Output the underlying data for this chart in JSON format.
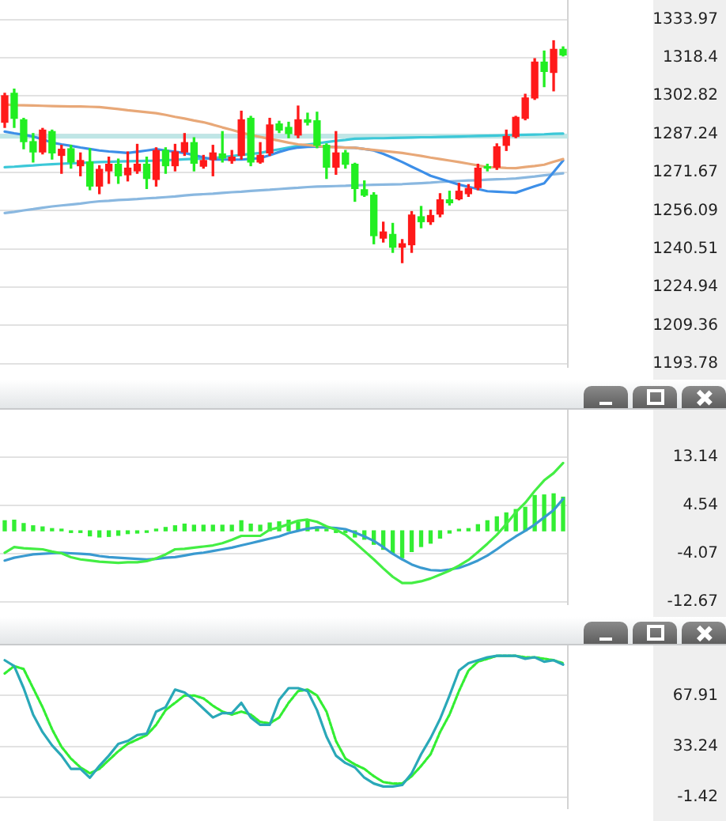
{
  "chart_data": [
    {
      "type": "candlestick",
      "categories": [
        null,
        null,
        null,
        null,
        null,
        null,
        null,
        null,
        null,
        null,
        null,
        null,
        null,
        null,
        null,
        null,
        null,
        null,
        null,
        null,
        null,
        null,
        null,
        null,
        null,
        null,
        null,
        null,
        null,
        null,
        null,
        null,
        null,
        null,
        null,
        null,
        null,
        null,
        null,
        null,
        null,
        null,
        null,
        null,
        null,
        null,
        null,
        null,
        null,
        null,
        null,
        null,
        null,
        null,
        null,
        null,
        null,
        null,
        null,
        null
      ],
      "ohlc": [
        [
          1292.1,
          1303.9,
          1290.0,
          1302.9
        ],
        [
          1303.9,
          1305.6,
          1290.0,
          1293.7
        ],
        [
          1293.1,
          1293.7,
          1281.3,
          1284.2
        ],
        [
          1284.2,
          1287.5,
          1275.9,
          1280.0
        ],
        [
          1280.0,
          1289.6,
          1279.2,
          1288.9
        ],
        [
          1288.3,
          1288.9,
          1277.1,
          1279.6
        ],
        [
          1278.6,
          1282.7,
          1271.3,
          1281.1
        ],
        [
          1281.3,
          1282.7,
          1273.4,
          1275.9
        ],
        [
          1274.4,
          1279.6,
          1270.3,
          1276.5
        ],
        [
          1275.9,
          1281.3,
          1264.6,
          1266.1
        ],
        [
          1266.1,
          1274.4,
          1263.0,
          1272.9
        ],
        [
          1272.3,
          1277.9,
          1267.2,
          1275.0
        ],
        [
          1275.0,
          1277.1,
          1267.2,
          1270.3
        ],
        [
          1270.7,
          1280.0,
          1268.2,
          1273.4
        ],
        [
          1272.3,
          1283.1,
          1271.3,
          1275.0
        ],
        [
          1275.0,
          1277.9,
          1265.1,
          1269.2
        ],
        [
          1268.8,
          1281.7,
          1266.1,
          1280.6
        ],
        [
          1280.6,
          1281.7,
          1271.3,
          1274.4
        ],
        [
          1274.4,
          1283.1,
          1272.3,
          1280.0
        ],
        [
          1280.0,
          1287.5,
          1278.6,
          1283.8
        ],
        [
          1283.8,
          1285.8,
          1272.3,
          1275.4
        ],
        [
          1274.2,
          1278.6,
          1273.4,
          1276.5
        ],
        [
          1276.9,
          1282.7,
          1270.3,
          1279.6
        ],
        [
          1279.2,
          1288.3,
          1275.9,
          1277.5
        ],
        [
          1276.5,
          1280.6,
          1275.4,
          1277.9
        ],
        [
          1278.6,
          1296.6,
          1277.1,
          1293.1
        ],
        [
          1293.7,
          1294.5,
          1274.4,
          1275.9
        ],
        [
          1275.9,
          1283.8,
          1275.4,
          1278.6
        ],
        [
          1279.6,
          1293.7,
          1278.6,
          1291.0
        ],
        [
          1291.4,
          1292.5,
          1287.9,
          1288.9
        ],
        [
          1290.0,
          1292.1,
          1285.8,
          1287.5
        ],
        [
          1286.9,
          1298.7,
          1285.8,
          1293.1
        ],
        [
          1293.1,
          1295.8,
          1291.0,
          1292.1
        ],
        [
          1292.7,
          1296.2,
          1281.7,
          1282.7
        ],
        [
          1282.7,
          1283.3,
          1269.2,
          1273.8
        ],
        [
          1273.8,
          1288.3,
          1270.9,
          1279.6
        ],
        [
          1279.6,
          1280.6,
          1273.4,
          1275.0
        ],
        [
          1275.0,
          1275.4,
          1259.9,
          1265.1
        ],
        [
          1264.6,
          1268.2,
          1261.9,
          1262.4
        ],
        [
          1262.4,
          1263.4,
          1242.6,
          1245.9
        ],
        [
          1244.9,
          1251.4,
          1243.3,
          1247.4
        ],
        [
          1246.4,
          1250.9,
          1239.1,
          1241.2
        ],
        [
          1241.2,
          1244.3,
          1234.9,
          1242.6
        ],
        [
          1242.2,
          1255.7,
          1239.1,
          1254.3
        ],
        [
          1253.6,
          1257.8,
          1249.1,
          1251.6
        ],
        [
          1251.6,
          1256.3,
          1250.5,
          1254.1
        ],
        [
          1254.7,
          1263.0,
          1253.6,
          1260.5
        ],
        [
          1260.5,
          1264.0,
          1258.4,
          1259.3
        ],
        [
          1260.9,
          1267.2,
          1260.5,
          1264.0
        ],
        [
          1263.0,
          1266.7,
          1261.9,
          1265.1
        ],
        [
          1265.5,
          1275.0,
          1264.6,
          1273.4
        ],
        [
          1273.8,
          1275.0,
          1272.3,
          1273.4
        ],
        [
          1273.8,
          1283.3,
          1272.9,
          1282.1
        ],
        [
          1282.7,
          1288.9,
          1280.6,
          1286.3
        ],
        [
          1286.3,
          1294.5,
          1285.8,
          1294.1
        ],
        [
          1293.7,
          1303.5,
          1293.1,
          1302.0
        ],
        [
          1302.0,
          1318.0,
          1301.4,
          1316.6
        ],
        [
          1316.6,
          1321.1,
          1306.6,
          1312.8
        ],
        [
          1312.4,
          1325.3,
          1304.9,
          1321.8
        ],
        [
          1321.8,
          1322.8,
          1319.1,
          1319.5
        ]
      ],
      "colors": [
        "#ff1a1a",
        "#22ee22",
        "#22ee22",
        "#22ee22",
        "#ff1a1a",
        "#22ee22",
        "#ff1a1a",
        "#22ee22",
        "#ff1a1a",
        "#22ee22",
        "#ff1a1a",
        "#ff1a1a",
        "#22ee22",
        "#ff1a1a",
        "#ff1a1a",
        "#22ee22",
        "#ff1a1a",
        "#22ee22",
        "#ff1a1a",
        "#ff1a1a",
        "#22ee22",
        "#ff1a1a",
        "#ff1a1a",
        "#22ee22",
        "#ff1a1a",
        "#ff1a1a",
        "#22ee22",
        "#ff1a1a",
        "#ff1a1a",
        "#22ee22",
        "#22ee22",
        "#ff1a1a",
        "#22ee22",
        "#22ee22",
        "#22ee22",
        "#ff1a1a",
        "#22ee22",
        "#22ee22",
        "#22ee22",
        "#22ee22",
        "#ff1a1a",
        "#22ee22",
        "#ff1a1a",
        "#ff1a1a",
        "#22ee22",
        "#ff1a1a",
        "#ff1a1a",
        "#22ee22",
        "#ff1a1a",
        "#ff1a1a",
        "#ff1a1a",
        "#22ee22",
        "#ff1a1a",
        "#ff1a1a",
        "#ff1a1a",
        "#ff1a1a",
        "#ff1a1a",
        "#22ee22",
        "#ff1a1a",
        "#22ee22"
      ],
      "series": [
        {
          "type": "line",
          "color": "#e8a878",
          "values": [
            1299.3,
            1299.1,
            1299.0,
            1298.9,
            1298.8,
            1298.7,
            1298.6,
            1298.5,
            1298.5,
            1298.4,
            1298.3,
            1297.9,
            1297.5,
            1297.0,
            1296.6,
            1296.2,
            1295.8,
            1295.1,
            1294.3,
            1293.6,
            1292.8,
            1292.1,
            1291.1,
            1290.0,
            1289.0,
            1287.9,
            1286.9,
            1286.1,
            1285.3,
            1284.6,
            1283.8,
            1283.1,
            1282.8,
            1282.4,
            1282.1,
            1281.9,
            1281.8,
            1281.7,
            1281.2,
            1280.8,
            1280.4,
            1280.0,
            1279.6,
            1279.0,
            1278.4,
            1277.7,
            1277.1,
            1276.5,
            1275.9,
            1275.2,
            1274.5,
            1273.8,
            1273.7,
            1273.5,
            1273.4,
            1273.9,
            1274.3,
            1274.8,
            1276.0,
            1277.1
          ]
        },
        {
          "type": "line",
          "color": "#3d8fe8",
          "values": [
            1288.3,
            1287.6,
            1287.0,
            1286.3,
            1285.1,
            1283.8,
            1283.1,
            1282.5,
            1281.8,
            1281.2,
            1280.6,
            1280.2,
            1279.9,
            1279.6,
            1280.1,
            1280.6,
            1281.1,
            1280.6,
            1280.1,
            1279.6,
            1278.7,
            1277.8,
            1276.9,
            1276.9,
            1276.9,
            1276.9,
            1277.2,
            1277.5,
            1278.7,
            1280.0,
            1281.1,
            1281.8,
            1282.1,
            1282.2,
            1282.2,
            1282.0,
            1281.8,
            1281.7,
            1281.2,
            1280.6,
            1279.2,
            1277.6,
            1275.9,
            1274.0,
            1272.2,
            1270.3,
            1269.1,
            1267.9,
            1266.7,
            1265.8,
            1264.9,
            1264.0,
            1263.8,
            1263.6,
            1263.4,
            1264.7,
            1266.0,
            1267.2,
            1271.8,
            1276.5
          ]
        },
        {
          "type": "line",
          "color": "#8ab8e0",
          "values": [
            1255.1,
            1255.6,
            1256.2,
            1256.7,
            1257.3,
            1257.8,
            1258.2,
            1258.6,
            1259.0,
            1259.5,
            1259.9,
            1260.1,
            1260.4,
            1260.6,
            1260.8,
            1261.1,
            1261.3,
            1261.6,
            1261.9,
            1262.3,
            1262.6,
            1262.8,
            1263.0,
            1263.3,
            1263.6,
            1263.8,
            1264.1,
            1264.4,
            1264.6,
            1264.9,
            1265.2,
            1265.4,
            1265.7,
            1265.9,
            1266.0,
            1266.1,
            1266.2,
            1266.4,
            1266.5,
            1266.6,
            1266.7,
            1266.8,
            1266.9,
            1267.1,
            1267.3,
            1267.5,
            1267.8,
            1268.0,
            1268.2,
            1268.4,
            1268.5,
            1268.7,
            1268.9,
            1269.0,
            1269.2,
            1269.6,
            1270.0,
            1270.5,
            1270.9,
            1271.3
          ]
        },
        {
          "type": "line",
          "color": "#3cc8d8",
          "values": [
            1273.8,
            1274.0,
            1274.3,
            1274.5,
            1274.8,
            1275.0,
            1275.2,
            1275.4,
            1275.5,
            1275.7,
            1275.9,
            1276.0,
            1276.1,
            1276.2,
            1276.3,
            1276.4,
            1276.5,
            1276.7,
            1276.8,
            1277.0,
            1277.2,
            1277.3,
            1277.5,
            1277.9,
            1278.3,
            1278.8,
            1279.2,
            1279.6,
            1280.4,
            1281.1,
            1281.8,
            1282.5,
            1283.0,
            1283.5,
            1284.0,
            1284.5,
            1284.9,
            1285.4,
            1285.5,
            1285.6,
            1285.6,
            1285.7,
            1285.8,
            1285.9,
            1286.0,
            1286.0,
            1286.1,
            1286.2,
            1286.3,
            1286.4,
            1286.5,
            1286.6,
            1286.7,
            1286.8,
            1286.9,
            1287.0,
            1287.1,
            1287.2,
            1287.4,
            1287.5
          ]
        }
      ],
      "ref_lines": [
        {
          "axis": "y",
          "value": 1286.4,
          "color": "#bfe6e6"
        }
      ],
      "ylim": [
        1192.4,
        1341.9
      ],
      "yticks": [
        1193.78,
        1209.36,
        1224.94,
        1240.51,
        1256.09,
        1271.67,
        1287.24,
        1302.82,
        1318.4,
        1333.97
      ],
      "grid": "y",
      "tick_labels": "y",
      "marker": "none"
    },
    {
      "type": "bar",
      "categories": [
        null,
        null,
        null,
        null,
        null,
        null,
        null,
        null,
        null,
        null,
        null,
        null,
        null,
        null,
        null,
        null,
        null,
        null,
        null,
        null,
        null,
        null,
        null,
        null,
        null,
        null,
        null,
        null,
        null,
        null,
        null,
        null,
        null,
        null,
        null,
        null,
        null,
        null,
        null,
        null,
        null,
        null,
        null,
        null,
        null,
        null,
        null,
        null,
        null,
        null,
        null,
        null,
        null,
        null,
        null,
        null,
        null,
        null,
        null,
        null
      ],
      "series": [
        {
          "type": "bar",
          "color": "#33ee33",
          "values": [
            1.8,
            1.9,
            1.3,
            0.9,
            0.7,
            0.4,
            0.3,
            -0.3,
            -0.3,
            -0.9,
            -1.1,
            -1.0,
            -0.8,
            -0.5,
            -0.4,
            -0.2,
            0.3,
            0.6,
            0.9,
            1.2,
            1.0,
            1.0,
            1.0,
            1.0,
            1.0,
            1.8,
            1.2,
            1.0,
            1.4,
            1.6,
            1.9,
            1.5,
            1.8,
            0.7,
            0.3,
            -0.3,
            -0.3,
            -1.1,
            -1.5,
            -2.4,
            -3.3,
            -4.0,
            -4.8,
            -3.7,
            -2.8,
            -2.2,
            -1.3,
            -0.4,
            0.2,
            0.4,
            1.1,
            1.8,
            2.5,
            3.2,
            3.8,
            4.2,
            6.3,
            6.4,
            6.6,
            6.0
          ]
        },
        {
          "type": "line",
          "color": "#44ee44",
          "values": [
            -3.9,
            -2.9,
            -3.1,
            -3.2,
            -3.3,
            -3.7,
            -4.0,
            -4.7,
            -5.1,
            -5.3,
            -5.5,
            -5.6,
            -5.7,
            -5.6,
            -5.6,
            -5.4,
            -4.9,
            -4.2,
            -3.3,
            -3.2,
            -3.0,
            -2.8,
            -2.6,
            -2.2,
            -1.6,
            -0.9,
            -0.9,
            -0.9,
            0.2,
            0.6,
            1.2,
            1.8,
            2.0,
            1.6,
            0.8,
            0.2,
            -0.7,
            -2.1,
            -3.6,
            -5.1,
            -6.7,
            -8.2,
            -9.3,
            -9.3,
            -9.0,
            -8.5,
            -7.8,
            -7.1,
            -6.2,
            -5.2,
            -3.8,
            -2.3,
            -0.7,
            1.2,
            3.3,
            5.0,
            7.1,
            9.0,
            10.3,
            12.1
          ]
        },
        {
          "type": "line",
          "color": "#3a9ad0",
          "values": [
            -5.3,
            -4.8,
            -4.5,
            -4.2,
            -4.1,
            -4.0,
            -3.9,
            -4.0,
            -4.1,
            -4.2,
            -4.5,
            -4.7,
            -4.8,
            -4.9,
            -5.0,
            -5.1,
            -5.0,
            -4.8,
            -4.7,
            -4.4,
            -4.1,
            -3.9,
            -3.6,
            -3.3,
            -3.0,
            -2.6,
            -2.2,
            -1.8,
            -1.4,
            -1.0,
            -0.4,
            0.0,
            0.4,
            0.6,
            0.6,
            0.5,
            0.3,
            -0.3,
            -1.0,
            -1.8,
            -2.9,
            -4.1,
            -5.1,
            -6.0,
            -6.6,
            -7.0,
            -7.1,
            -6.9,
            -6.6,
            -6.0,
            -5.3,
            -4.4,
            -3.3,
            -2.1,
            -1.0,
            0.0,
            1.1,
            2.4,
            3.7,
            5.7
          ]
        }
      ],
      "ylim": [
        -13.1,
        21.6
      ],
      "yticks": [
        -12.67,
        -4.07,
        4.54,
        13.14
      ],
      "grid": "y",
      "tick_labels": "y",
      "marker": "none"
    },
    {
      "type": "line",
      "categories": [
        null,
        null,
        null,
        null,
        null,
        null,
        null,
        null,
        null,
        null,
        null,
        null,
        null,
        null,
        null,
        null,
        null,
        null,
        null,
        null,
        null,
        null,
        null,
        null,
        null,
        null,
        null,
        null,
        null,
        null,
        null,
        null,
        null,
        null,
        null,
        null,
        null,
        null,
        null,
        null,
        null,
        null,
        null,
        null,
        null,
        null,
        null,
        null,
        null,
        null,
        null,
        null,
        null,
        null,
        null,
        null,
        null,
        null,
        null,
        null
      ],
      "series": [
        {
          "color": "#2aa8b8",
          "line_style": "solid",
          "values": [
            92,
            88,
            73,
            55,
            43,
            34,
            27,
            18,
            18,
            12,
            20,
            27,
            35,
            37,
            41,
            42,
            57,
            60,
            72,
            70,
            65,
            59,
            53,
            56,
            56,
            63,
            53,
            48,
            48,
            65,
            73,
            73,
            71,
            58,
            40,
            27,
            22,
            19,
            12,
            8,
            6,
            6,
            7,
            15,
            28,
            39,
            52,
            68,
            85,
            90,
            92,
            94,
            95,
            95,
            95,
            93,
            94,
            91,
            92,
            89
          ]
        },
        {
          "color": "#33ee33",
          "line_style": "dotted",
          "values": [
            83,
            88,
            86,
            73,
            60,
            45,
            33,
            25,
            19,
            15,
            18,
            24,
            30,
            35,
            38,
            41,
            48,
            58,
            63,
            68,
            68,
            66,
            61,
            57,
            55,
            57,
            55,
            50,
            49,
            53,
            63,
            71,
            72,
            68,
            57,
            37,
            25,
            21,
            18,
            13,
            9,
            8,
            8,
            13,
            20,
            28,
            43,
            55,
            71,
            85,
            91,
            93,
            95,
            95,
            95,
            94,
            94,
            93,
            92,
            90
          ]
        }
      ],
      "ylim": [
        -8.9,
        102.1
      ],
      "yticks": [
        -1.42,
        33.24,
        67.91
      ],
      "grid": "y",
      "tick_labels": "y",
      "marker": "none"
    }
  ]
}
